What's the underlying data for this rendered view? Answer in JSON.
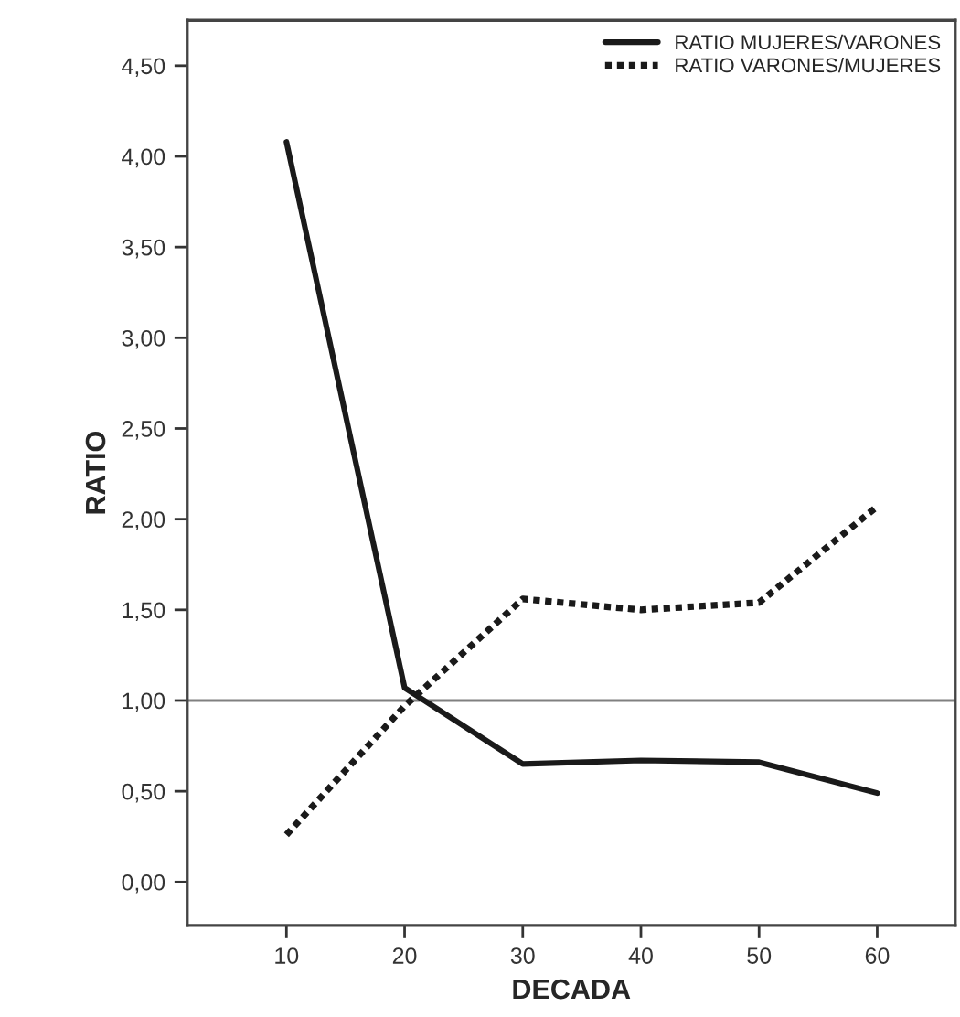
{
  "chart_data": {
    "type": "line",
    "xlabel": "DECADA",
    "ylabel": "RATIO",
    "x": [
      10,
      20,
      30,
      40,
      50,
      60
    ],
    "series": [
      {
        "name": "RATIO MUJERES/VARONES",
        "color": "#1a1a1a",
        "values": [
          4.08,
          1.07,
          0.65,
          0.67,
          0.66,
          0.49
        ],
        "line_style": "solid"
      },
      {
        "name": "RATIO VARONES/MUJERES",
        "color": "#1a1a1a",
        "values": [
          0.26,
          0.97,
          1.56,
          1.5,
          1.54,
          2.07
        ],
        "line_style": "dotted"
      }
    ],
    "xlim": [
      1.6,
      66.6
    ],
    "ylim": [
      -0.24,
      4.75
    ],
    "xticks": [
      10,
      20,
      30,
      40,
      50,
      60
    ],
    "yticks": [
      {
        "value": 0,
        "label": "0,00"
      },
      {
        "value": 0.5,
        "label": "0,50"
      },
      {
        "value": 1,
        "label": "1,00"
      },
      {
        "value": 1.5,
        "label": "1,50"
      },
      {
        "value": 2,
        "label": "2,00"
      },
      {
        "value": 2.5,
        "label": "2,50"
      },
      {
        "value": 3,
        "label": "3,00"
      },
      {
        "value": 3.5,
        "label": "3,50"
      },
      {
        "value": 4,
        "label": "4,00"
      },
      {
        "value": 4.5,
        "label": "4,50"
      }
    ],
    "ref_lines": [
      {
        "axis": "y",
        "value": 1,
        "color": "#808080"
      }
    ],
    "grid": false,
    "legend": "top right",
    "marker": "none"
  }
}
